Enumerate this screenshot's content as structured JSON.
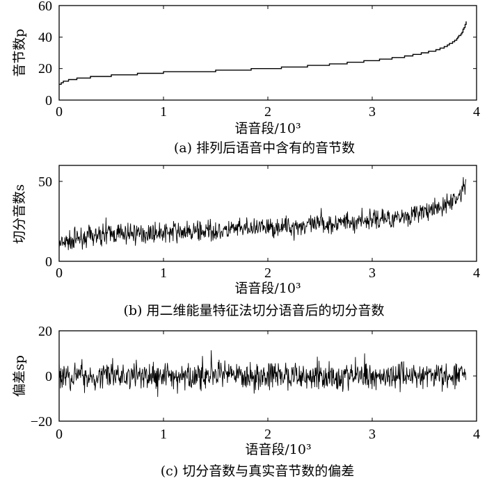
{
  "chart_data": [
    {
      "type": "line",
      "ylabel": "音节数p",
      "xlabel": "语音段/10³",
      "caption": "(a) 排列后语音中含有的音节数",
      "xlim": [
        0,
        4
      ],
      "ylim": [
        0,
        60
      ],
      "xticks": [
        "0",
        "1",
        "2",
        "3",
        "4"
      ],
      "yticks": [
        "0",
        "20",
        "40",
        "60"
      ],
      "series": [
        {
          "x": [
            0,
            0.05,
            0.2,
            0.3,
            0.5,
            1.0,
            1.5,
            2.0,
            2.5,
            3.0,
            3.3,
            3.5,
            3.6,
            3.7,
            3.75,
            3.8,
            3.85,
            3.88,
            3.9
          ],
          "y": [
            10,
            12,
            14,
            14.5,
            15.5,
            17.5,
            18.5,
            20,
            22,
            25,
            27.5,
            30,
            31.5,
            34,
            36,
            38.5,
            42,
            46,
            50
          ]
        }
      ]
    },
    {
      "type": "line",
      "ylabel": "切分音数s",
      "xlabel": "语音段/10³",
      "caption": "(b) 用二维能量特征法切分语音后的切分音数",
      "xlim": [
        0,
        4
      ],
      "ylim": [
        0,
        60
      ],
      "xticks": [
        "0",
        "1",
        "2",
        "3",
        "4"
      ],
      "yticks": [
        "0",
        "50"
      ],
      "series": [
        {
          "x": [
            0,
            0.2,
            0.5,
            1.0,
            1.5,
            2.0,
            2.5,
            3.0,
            3.3,
            3.5,
            3.6,
            3.7,
            3.8,
            3.85,
            3.9
          ],
          "y": [
            10,
            15,
            17,
            18,
            19,
            21,
            23,
            26,
            28,
            31,
            32,
            35,
            39,
            43,
            48
          ],
          "noise_amplitude": 6
        }
      ]
    },
    {
      "type": "line",
      "ylabel": "偏差sp",
      "xlabel": "语音段/10³",
      "caption": "(c) 切分音数与真实音节数的偏差",
      "xlim": [
        0,
        4
      ],
      "ylim": [
        -20,
        20
      ],
      "xticks": [
        "0",
        "1",
        "2",
        "3",
        "4"
      ],
      "yticks": [
        "−20",
        "0",
        "20"
      ],
      "series": [
        {
          "x": [
            0,
            3.9
          ],
          "y": [
            0,
            0
          ],
          "noise_amplitude": 6
        }
      ]
    }
  ]
}
